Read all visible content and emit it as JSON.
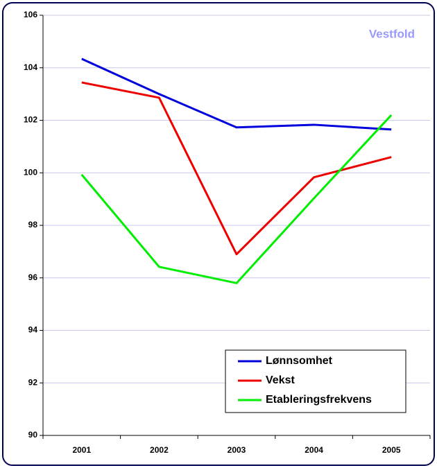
{
  "chart_data": {
    "type": "line",
    "title": "Vestfold",
    "categories": [
      "2001",
      "2002",
      "2003",
      "2004",
      "2005"
    ],
    "series": [
      {
        "name": "Lønnsomhet",
        "color": "#0000dd",
        "values": [
          104.34,
          103.0,
          101.73,
          101.83,
          101.65
        ]
      },
      {
        "name": "Vekst",
        "color": "#ee0000",
        "values": [
          103.44,
          102.86,
          96.9,
          99.83,
          100.6
        ]
      },
      {
        "name": "Etableringsfrekvens",
        "color": "#00ee00",
        "values": [
          99.93,
          96.42,
          95.8,
          99.03,
          102.2
        ]
      }
    ],
    "ylim": [
      90,
      106
    ],
    "yticks": [
      90,
      92,
      94,
      96,
      98,
      100,
      102,
      104,
      106
    ],
    "grid": true,
    "legend": "lower right"
  }
}
